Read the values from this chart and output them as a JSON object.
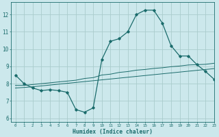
{
  "xlabel": "Humidex (Indice chaleur)",
  "bg_color": "#cce8ec",
  "grid_color": "#aacccc",
  "line_color": "#1a6b6b",
  "xlim": [
    -0.5,
    23
  ],
  "ylim": [
    5.8,
    12.7
  ],
  "yticks": [
    6,
    7,
    8,
    9,
    10,
    11,
    12
  ],
  "xticks": [
    0,
    1,
    2,
    3,
    4,
    5,
    6,
    7,
    8,
    9,
    10,
    11,
    12,
    13,
    14,
    15,
    16,
    17,
    18,
    19,
    20,
    21,
    22,
    23
  ],
  "series1_x": [
    0,
    1,
    2,
    3,
    4,
    5,
    6,
    7,
    8,
    9,
    10,
    11,
    12,
    13,
    14,
    15,
    16,
    17,
    18,
    19,
    20,
    21,
    22,
    23
  ],
  "series1_y": [
    8.5,
    8.0,
    7.75,
    7.6,
    7.65,
    7.6,
    7.5,
    6.5,
    6.35,
    6.6,
    9.4,
    10.45,
    10.6,
    11.0,
    12.0,
    12.25,
    12.25,
    11.5,
    10.2,
    9.6,
    9.6,
    9.1,
    8.7,
    8.25
  ],
  "series2_x": [
    0,
    1,
    2,
    3,
    4,
    5,
    6,
    7,
    8,
    9,
    10,
    11,
    12,
    13,
    14,
    15,
    16,
    17,
    18,
    19,
    20,
    21,
    22,
    23
  ],
  "series2_y": [
    7.9,
    7.9,
    7.95,
    8.0,
    8.05,
    8.1,
    8.15,
    8.2,
    8.3,
    8.35,
    8.5,
    8.55,
    8.65,
    8.7,
    8.78,
    8.82,
    8.88,
    8.92,
    8.98,
    9.02,
    9.08,
    9.1,
    9.12,
    9.18
  ],
  "series3_x": [
    0,
    1,
    2,
    3,
    4,
    5,
    6,
    7,
    8,
    9,
    10,
    11,
    12,
    13,
    14,
    15,
    16,
    17,
    18,
    19,
    20,
    21,
    22,
    23
  ],
  "series3_y": [
    7.75,
    7.78,
    7.82,
    7.87,
    7.92,
    7.97,
    8.02,
    8.07,
    8.12,
    8.17,
    8.22,
    8.27,
    8.32,
    8.37,
    8.42,
    8.47,
    8.52,
    8.57,
    8.62,
    8.67,
    8.72,
    8.77,
    8.82,
    8.87
  ]
}
